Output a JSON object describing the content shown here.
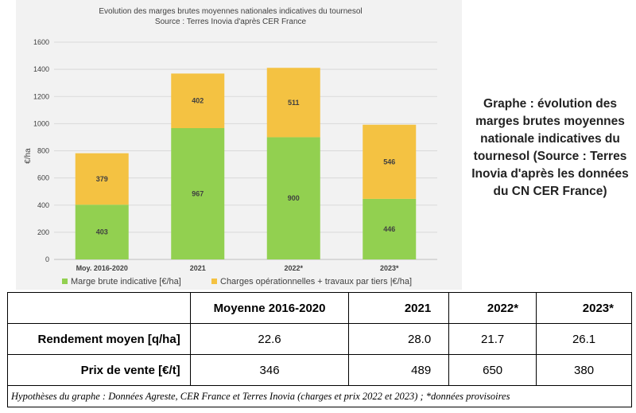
{
  "chart_data": {
    "type": "bar",
    "stacked": true,
    "title": "Evolution des marges brutes moyennes nationales indicatives du tournesol",
    "subtitle": "Source : Terres Inovia d'après CER France",
    "ylabel": "€/ha",
    "xlabel": "",
    "ylim": [
      0,
      1600
    ],
    "yticks": [
      0,
      200,
      400,
      600,
      800,
      1000,
      1200,
      1400,
      1600
    ],
    "grid": true,
    "legend_position": "bottom",
    "categories": [
      "Moy. 2016-2020",
      "2021",
      "2022*",
      "2023*"
    ],
    "series": [
      {
        "name": "Marge brute indicative [€/ha]",
        "color": "#92d050",
        "values": [
          403,
          967,
          900,
          446
        ]
      },
      {
        "name": "Charges opérationnelles + travaux par tiers |€/ha]",
        "color": "#f4c242",
        "values": [
          379,
          402,
          511,
          546
        ]
      }
    ]
  },
  "caption": "Graphe : évolution des marges brutes moyennes nationale indicatives du tournesol (Source : Terres Inovia d'après les données du CN CER France)",
  "table": {
    "headers": [
      "Moyenne 2016-2020",
      "2021",
      "2022*",
      "2023*"
    ],
    "rows": [
      {
        "label": "Rendement moyen [q/ha]",
        "values": [
          "22.6",
          "28.0",
          "21.7",
          "26.1"
        ]
      },
      {
        "label": "Prix de vente [€/t]",
        "values": [
          "346",
          "489",
          "650",
          "380"
        ]
      }
    ],
    "footnote": "Hypothèses du graphe : Données Agreste, CER France et Terres Inovia (charges et prix 2022 et 2023) ; *données provisoires"
  }
}
